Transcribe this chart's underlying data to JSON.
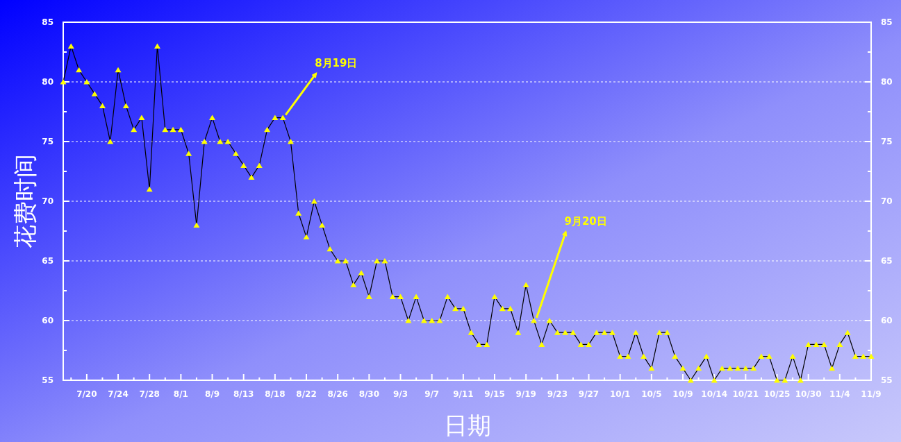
{
  "chart_data": {
    "type": "line",
    "xlabel": "日期",
    "ylabel": "花费时间",
    "categories": [
      null,
      null,
      null,
      "7/20",
      null,
      null,
      null,
      "7/24",
      null,
      null,
      null,
      "7/28",
      null,
      null,
      null,
      "8/1",
      null,
      null,
      null,
      "8/9",
      null,
      null,
      null,
      "8/13",
      null,
      null,
      null,
      "8/18",
      null,
      null,
      null,
      "8/22",
      null,
      null,
      null,
      "8/26",
      null,
      null,
      null,
      "8/30",
      null,
      null,
      null,
      "9/3",
      null,
      null,
      null,
      "9/7",
      null,
      null,
      null,
      "9/11",
      null,
      null,
      null,
      "9/15",
      null,
      null,
      null,
      "9/19",
      null,
      null,
      null,
      "9/23",
      null,
      null,
      null,
      "9/27",
      null,
      null,
      null,
      "10/1",
      null,
      null,
      null,
      "10/5",
      null,
      null,
      null,
      "10/9",
      null,
      null,
      null,
      "10/14",
      null,
      null,
      null,
      "10/21",
      null,
      null,
      null,
      "10/25",
      null,
      null,
      null,
      "10/30",
      null,
      null,
      null,
      "11/4",
      null,
      null,
      null,
      "11/9"
    ],
    "series": [
      {
        "color": "#ffff00",
        "values": [
          80,
          83,
          81,
          80,
          79,
          78,
          75,
          81,
          78,
          76,
          77,
          71,
          83,
          76,
          76,
          76,
          74,
          68,
          75,
          77,
          75,
          75,
          74,
          73,
          72,
          73,
          76,
          77,
          77,
          75,
          69,
          67,
          70,
          68,
          66,
          65,
          65,
          63,
          64,
          62,
          65,
          65,
          62,
          62,
          60,
          62,
          60,
          60,
          60,
          62,
          61,
          61,
          59,
          58,
          58,
          62,
          61,
          61,
          59,
          63,
          60,
          58,
          60,
          59,
          59,
          59,
          58,
          58,
          59,
          59,
          59,
          57,
          57,
          59,
          57,
          56,
          59,
          59,
          57,
          56,
          55,
          56,
          57,
          55,
          56,
          56,
          56,
          56,
          56,
          57,
          57,
          55,
          55,
          57,
          55,
          58,
          58,
          58,
          56,
          58,
          59,
          57,
          57,
          57
        ]
      }
    ],
    "ylim": [
      55,
      85
    ],
    "yticks": [
      55,
      {
        "value": 57.5,
        "label": null
      },
      60,
      {
        "value": 62.5,
        "label": null
      },
      65,
      {
        "value": 67.5,
        "label": null
      },
      70,
      {
        "value": 72.5,
        "label": null
      },
      75,
      {
        "value": 77.5,
        "label": null
      },
      80,
      {
        "value": 82.5,
        "label": null
      },
      85
    ],
    "y2lim": [
      55,
      85
    ],
    "y2ticks": [
      55,
      {
        "value": 57.5,
        "label": null
      },
      60,
      {
        "value": 62.5,
        "label": null
      },
      65,
      {
        "value": 67.5,
        "label": null
      },
      70,
      {
        "value": 72.5,
        "label": null
      },
      75,
      {
        "value": 77.5,
        "label": null
      },
      80,
      {
        "value": 82.5,
        "label": null
      },
      85
    ],
    "grid": "y",
    "marker": "triangle",
    "line_style": "solid",
    "annotations": [
      "8月19日",
      "9月20日"
    ]
  }
}
